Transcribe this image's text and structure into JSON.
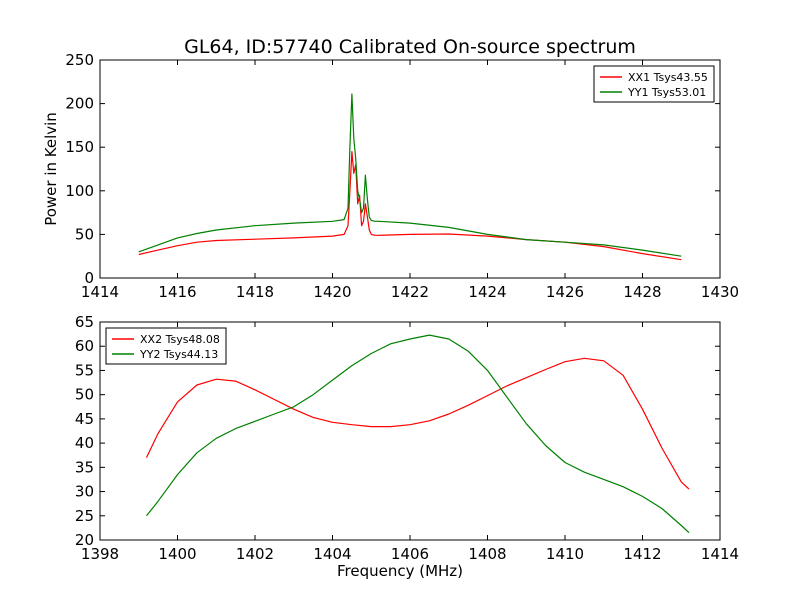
{
  "title": "GL64, ID:57740 Calibrated On-source spectrum",
  "chart_data": [
    {
      "type": "line",
      "title": "GL64, ID:57740 Calibrated On-source spectrum",
      "xlabel": "",
      "ylabel": "Power in Kelvin",
      "xlim": [
        1414,
        1430
      ],
      "ylim": [
        0,
        250
      ],
      "xticks": [
        1414,
        1416,
        1418,
        1420,
        1422,
        1424,
        1426,
        1428,
        1430
      ],
      "yticks": [
        0,
        50,
        100,
        150,
        200,
        250
      ],
      "grid": false,
      "legend": "top-right",
      "series": [
        {
          "name": "XX1 Tsys43.55",
          "color": "#ff0000",
          "x": [
            1415.0,
            1415.5,
            1416.0,
            1416.5,
            1417.0,
            1418.0,
            1419.0,
            1420.0,
            1420.3,
            1420.4,
            1420.45,
            1420.5,
            1420.55,
            1420.6,
            1420.65,
            1420.7,
            1420.75,
            1420.8,
            1420.85,
            1420.9,
            1420.95,
            1421.0,
            1421.1,
            1421.2,
            1422.0,
            1423.0,
            1424.0,
            1425.0,
            1426.0,
            1427.0,
            1428.0,
            1429.0
          ],
          "y": [
            27,
            32,
            37,
            41,
            43,
            44.5,
            46,
            48,
            50,
            60,
            100,
            145,
            120,
            130,
            85,
            95,
            60,
            65,
            85,
            70,
            55,
            50,
            49,
            49,
            50,
            50.5,
            48,
            44,
            41,
            36,
            28,
            21
          ]
        },
        {
          "name": "YY1 Tsys53.01",
          "color": "#008000",
          "x": [
            1415.0,
            1415.5,
            1416.0,
            1416.5,
            1417.0,
            1418.0,
            1419.0,
            1420.0,
            1420.3,
            1420.4,
            1420.45,
            1420.5,
            1420.55,
            1420.6,
            1420.65,
            1420.7,
            1420.75,
            1420.8,
            1420.85,
            1420.9,
            1420.95,
            1421.0,
            1421.1,
            1421.2,
            1422.0,
            1423.0,
            1424.0,
            1425.0,
            1426.0,
            1427.0,
            1428.0,
            1429.0
          ],
          "y": [
            30,
            38,
            46,
            51,
            55,
            60,
            63,
            65,
            67,
            80,
            150,
            211,
            160,
            137,
            100,
            90,
            75,
            80,
            118,
            90,
            70,
            66,
            65,
            65,
            63,
            58,
            50,
            44,
            41,
            38,
            32,
            25
          ]
        }
      ]
    },
    {
      "type": "line",
      "title": "",
      "xlabel": "Frequency (MHz)",
      "ylabel": "",
      "xlim": [
        1398,
        1414
      ],
      "ylim": [
        20,
        65
      ],
      "xticks": [
        1398,
        1400,
        1402,
        1404,
        1406,
        1408,
        1410,
        1412,
        1414
      ],
      "yticks": [
        20,
        25,
        30,
        35,
        40,
        45,
        50,
        55,
        60,
        65
      ],
      "grid": false,
      "legend": "top-left",
      "series": [
        {
          "name": "XX2 Tsys48.08",
          "color": "#ff0000",
          "x": [
            1399.2,
            1399.5,
            1400.0,
            1400.5,
            1401.0,
            1401.5,
            1402.0,
            1402.5,
            1403.0,
            1403.5,
            1404.0,
            1404.5,
            1405.0,
            1405.5,
            1406.0,
            1406.5,
            1407.0,
            1407.5,
            1408.0,
            1408.5,
            1409.0,
            1409.5,
            1410.0,
            1410.5,
            1411.0,
            1411.5,
            1412.0,
            1412.5,
            1413.0,
            1413.2
          ],
          "y": [
            37,
            42,
            48.5,
            52,
            53.2,
            52.8,
            51,
            49,
            47,
            45.3,
            44.3,
            43.8,
            43.4,
            43.4,
            43.8,
            44.6,
            46,
            47.8,
            49.8,
            51.8,
            53.5,
            55.2,
            56.8,
            57.5,
            57,
            54,
            47,
            39,
            32,
            30.5
          ]
        },
        {
          "name": "YY2 Tsys44.13",
          "color": "#008000",
          "x": [
            1399.2,
            1399.5,
            1400.0,
            1400.5,
            1401.0,
            1401.5,
            1402.0,
            1402.5,
            1403.0,
            1403.5,
            1404.0,
            1404.5,
            1405.0,
            1405.5,
            1406.0,
            1406.5,
            1407.0,
            1407.5,
            1408.0,
            1408.5,
            1409.0,
            1409.5,
            1410.0,
            1410.5,
            1411.0,
            1411.5,
            1412.0,
            1412.5,
            1413.0,
            1413.2
          ],
          "y": [
            25,
            28,
            33.5,
            38,
            41,
            43,
            44.5,
            46,
            47.5,
            50,
            53,
            56,
            58.5,
            60.5,
            61.5,
            62.3,
            61.5,
            59,
            55,
            49.5,
            44,
            39.5,
            36,
            34,
            32.5,
            31,
            29,
            26.5,
            23,
            21.5
          ]
        }
      ]
    }
  ]
}
